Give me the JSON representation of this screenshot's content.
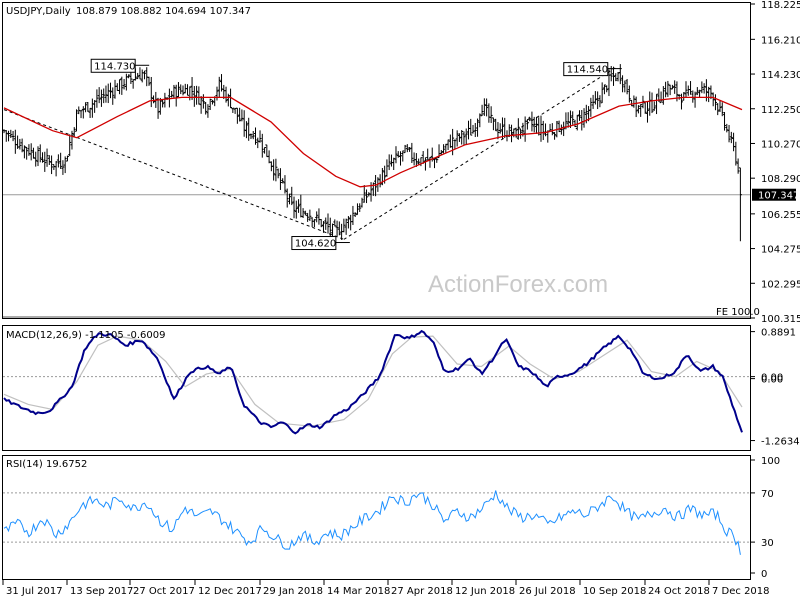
{
  "chart_data": [
    {
      "type": "ohlc",
      "title": "USDJPY,Daily",
      "ohlc_header": "108.879 108.882 104.694 107.347",
      "ylim": [
        100.315,
        118.225
      ],
      "y_ticks": [
        "118.225",
        "116.210",
        "114.230",
        "112.250",
        "110.270",
        "108.290",
        "106.255",
        "104.275",
        "102.295",
        "100.315"
      ],
      "last_price": "107.347",
      "x_ticks": [
        "31 Jul 2017",
        "13 Sep 2017",
        "27 Oct 2017",
        "12 Dec 2017",
        "29 Jan 2018",
        "14 Mar 2018",
        "27 Apr 2018",
        "12 Jun 2018",
        "26 Jul 2018",
        "10 Sep 2018",
        "24 Oct 2018",
        "7 Dec 2018"
      ],
      "annotations": [
        {
          "text": "114.730",
          "value": 114.73,
          "date": "25 Oct 2017"
        },
        {
          "text": "104.620",
          "value": 104.62,
          "date": "26 Mar 2018"
        },
        {
          "text": "114.540",
          "value": 114.54,
          "date": "4 Oct 2018"
        }
      ],
      "fe_label": "FE 100.0",
      "price_path": [
        {
          "day": 0,
          "close": 111.0
        },
        {
          "day": 10,
          "close": 110.2
        },
        {
          "day": 20,
          "close": 109.6
        },
        {
          "day": 30,
          "close": 109.1
        },
        {
          "day": 38,
          "close": 109.3
        },
        {
          "day": 45,
          "close": 112.0
        },
        {
          "day": 55,
          "close": 112.6
        },
        {
          "day": 65,
          "close": 113.2
        },
        {
          "day": 75,
          "close": 113.8
        },
        {
          "day": 86,
          "close": 114.3
        },
        {
          "day": 95,
          "close": 112.2
        },
        {
          "day": 105,
          "close": 113.2
        },
        {
          "day": 115,
          "close": 113.4
        },
        {
          "day": 125,
          "close": 112.4
        },
        {
          "day": 133,
          "close": 113.6
        },
        {
          "day": 140,
          "close": 112.6
        },
        {
          "day": 148,
          "close": 111.2
        },
        {
          "day": 158,
          "close": 110.5
        },
        {
          "day": 168,
          "close": 108.6
        },
        {
          "day": 178,
          "close": 106.6
        },
        {
          "day": 188,
          "close": 106.3
        },
        {
          "day": 198,
          "close": 105.6
        },
        {
          "day": 205,
          "close": 105.2
        },
        {
          "day": 212,
          "close": 105.8
        },
        {
          "day": 220,
          "close": 106.8
        },
        {
          "day": 230,
          "close": 108.0
        },
        {
          "day": 240,
          "close": 109.2
        },
        {
          "day": 248,
          "close": 109.8
        },
        {
          "day": 255,
          "close": 109.4
        },
        {
          "day": 265,
          "close": 109.3
        },
        {
          "day": 275,
          "close": 110.3
        },
        {
          "day": 285,
          "close": 110.8
        },
        {
          "day": 290,
          "close": 111.0
        },
        {
          "day": 295,
          "close": 112.5
        },
        {
          "day": 303,
          "close": 111.2
        },
        {
          "day": 315,
          "close": 110.8
        },
        {
          "day": 325,
          "close": 111.4
        },
        {
          "day": 335,
          "close": 110.9
        },
        {
          "day": 345,
          "close": 111.3
        },
        {
          "day": 355,
          "close": 111.6
        },
        {
          "day": 365,
          "close": 112.5
        },
        {
          "day": 375,
          "close": 114.0
        },
        {
          "day": 381,
          "close": 114.2
        },
        {
          "day": 390,
          "close": 112.3
        },
        {
          "day": 400,
          "close": 112.4
        },
        {
          "day": 410,
          "close": 113.5
        },
        {
          "day": 420,
          "close": 112.9
        },
        {
          "day": 430,
          "close": 113.4
        },
        {
          "day": 438,
          "close": 113.1
        },
        {
          "day": 445,
          "close": 111.4
        },
        {
          "day": 452,
          "close": 109.6
        },
        {
          "day": 456,
          "close": 107.3
        }
      ],
      "moving_average": [
        {
          "day": 0,
          "value": 112.3
        },
        {
          "day": 30,
          "value": 111.0
        },
        {
          "day": 45,
          "value": 110.6
        },
        {
          "day": 70,
          "value": 111.8
        },
        {
          "day": 90,
          "value": 112.7
        },
        {
          "day": 110,
          "value": 112.9
        },
        {
          "day": 140,
          "value": 112.9
        },
        {
          "day": 165,
          "value": 111.5
        },
        {
          "day": 185,
          "value": 109.7
        },
        {
          "day": 205,
          "value": 108.4
        },
        {
          "day": 220,
          "value": 107.8
        },
        {
          "day": 230,
          "value": 107.9
        },
        {
          "day": 245,
          "value": 108.6
        },
        {
          "day": 265,
          "value": 109.4
        },
        {
          "day": 285,
          "value": 110.2
        },
        {
          "day": 310,
          "value": 110.7
        },
        {
          "day": 335,
          "value": 110.9
        },
        {
          "day": 355,
          "value": 111.4
        },
        {
          "day": 380,
          "value": 112.4
        },
        {
          "day": 400,
          "value": 112.7
        },
        {
          "day": 420,
          "value": 112.9
        },
        {
          "day": 438,
          "value": 112.9
        },
        {
          "day": 456,
          "value": 112.2
        }
      ],
      "trendlines": [
        {
          "from": {
            "day": 0,
            "value": 112.2
          },
          "to": {
            "day": 210,
            "value": 104.8
          }
        },
        {
          "from": {
            "day": 210,
            "value": 104.8
          },
          "to": {
            "day": 378,
            "value": 114.6
          }
        }
      ]
    },
    {
      "type": "line",
      "title": "MACD(12,26,9) -1.1105 -0.6009",
      "y_ticks": [
        "0.8891",
        "0.00",
        "0.00",
        "-1.2634"
      ],
      "ylim": [
        -1.45,
        1.0
      ],
      "series": [
        {
          "role": "macd",
          "values": [
            {
              "day": 0,
              "value": -0.45
            },
            {
              "day": 10,
              "value": -0.6
            },
            {
              "day": 20,
              "value": -0.72
            },
            {
              "day": 28,
              "value": -0.68
            },
            {
              "day": 35,
              "value": -0.45
            },
            {
              "day": 42,
              "value": -0.2
            },
            {
              "day": 50,
              "value": 0.55
            },
            {
              "day": 58,
              "value": 0.85
            },
            {
              "day": 66,
              "value": 0.82
            },
            {
              "day": 75,
              "value": 0.62
            },
            {
              "day": 85,
              "value": 0.73
            },
            {
              "day": 95,
              "value": 0.35
            },
            {
              "day": 105,
              "value": -0.45
            },
            {
              "day": 115,
              "value": 0.1
            },
            {
              "day": 125,
              "value": 0.2
            },
            {
              "day": 133,
              "value": 0.05
            },
            {
              "day": 140,
              "value": 0.2
            },
            {
              "day": 148,
              "value": -0.55
            },
            {
              "day": 158,
              "value": -0.9
            },
            {
              "day": 165,
              "value": -1.0
            },
            {
              "day": 172,
              "value": -0.9
            },
            {
              "day": 180,
              "value": -1.1
            },
            {
              "day": 188,
              "value": -0.95
            },
            {
              "day": 196,
              "value": -1.0
            },
            {
              "day": 205,
              "value": -0.75
            },
            {
              "day": 212,
              "value": -0.65
            },
            {
              "day": 222,
              "value": -0.35
            },
            {
              "day": 232,
              "value": 0.0
            },
            {
              "day": 242,
              "value": 0.85
            },
            {
              "day": 250,
              "value": 0.75
            },
            {
              "day": 258,
              "value": 0.9
            },
            {
              "day": 265,
              "value": 0.7
            },
            {
              "day": 272,
              "value": 0.1
            },
            {
              "day": 280,
              "value": 0.15
            },
            {
              "day": 288,
              "value": 0.35
            },
            {
              "day": 295,
              "value": 0.05
            },
            {
              "day": 302,
              "value": 0.35
            },
            {
              "day": 310,
              "value": 0.75
            },
            {
              "day": 318,
              "value": 0.2
            },
            {
              "day": 326,
              "value": 0.1
            },
            {
              "day": 335,
              "value": -0.2
            },
            {
              "day": 342,
              "value": 0.0
            },
            {
              "day": 350,
              "value": 0.05
            },
            {
              "day": 360,
              "value": 0.25
            },
            {
              "day": 370,
              "value": 0.55
            },
            {
              "day": 380,
              "value": 0.8
            },
            {
              "day": 388,
              "value": 0.5
            },
            {
              "day": 395,
              "value": 0.05
            },
            {
              "day": 405,
              "value": -0.05
            },
            {
              "day": 415,
              "value": 0.1
            },
            {
              "day": 422,
              "value": 0.45
            },
            {
              "day": 430,
              "value": 0.1
            },
            {
              "day": 438,
              "value": 0.2
            },
            {
              "day": 444,
              "value": 0.0
            },
            {
              "day": 450,
              "value": -0.55
            },
            {
              "day": 456,
              "value": -1.1
            }
          ]
        },
        {
          "role": "signal",
          "values": [
            {
              "day": 0,
              "value": -0.35
            },
            {
              "day": 15,
              "value": -0.55
            },
            {
              "day": 30,
              "value": -0.65
            },
            {
              "day": 45,
              "value": -0.1
            },
            {
              "day": 58,
              "value": 0.62
            },
            {
              "day": 70,
              "value": 0.8
            },
            {
              "day": 85,
              "value": 0.72
            },
            {
              "day": 100,
              "value": 0.3
            },
            {
              "day": 112,
              "value": -0.2
            },
            {
              "day": 125,
              "value": 0.05
            },
            {
              "day": 140,
              "value": 0.15
            },
            {
              "day": 155,
              "value": -0.55
            },
            {
              "day": 170,
              "value": -0.92
            },
            {
              "day": 190,
              "value": -0.98
            },
            {
              "day": 210,
              "value": -0.85
            },
            {
              "day": 225,
              "value": -0.45
            },
            {
              "day": 240,
              "value": 0.45
            },
            {
              "day": 252,
              "value": 0.78
            },
            {
              "day": 265,
              "value": 0.8
            },
            {
              "day": 280,
              "value": 0.25
            },
            {
              "day": 295,
              "value": 0.2
            },
            {
              "day": 312,
              "value": 0.6
            },
            {
              "day": 325,
              "value": 0.25
            },
            {
              "day": 340,
              "value": -0.05
            },
            {
              "day": 355,
              "value": 0.1
            },
            {
              "day": 372,
              "value": 0.45
            },
            {
              "day": 385,
              "value": 0.72
            },
            {
              "day": 400,
              "value": 0.1
            },
            {
              "day": 415,
              "value": 0.0
            },
            {
              "day": 428,
              "value": 0.3
            },
            {
              "day": 442,
              "value": 0.1
            },
            {
              "day": 456,
              "value": -0.6
            }
          ]
        }
      ]
    },
    {
      "type": "line",
      "title": "RSI(14) 19.6752",
      "y_ticks": [
        "100",
        "70",
        "30",
        "0"
      ],
      "ylim": [
        0,
        100
      ],
      "series": [
        {
          "role": "rsi",
          "values": [
            {
              "day": 0,
              "value": 38
            },
            {
              "day": 8,
              "value": 45
            },
            {
              "day": 16,
              "value": 38
            },
            {
              "day": 24,
              "value": 50
            },
            {
              "day": 32,
              "value": 36
            },
            {
              "day": 40,
              "value": 45
            },
            {
              "day": 48,
              "value": 60
            },
            {
              "day": 56,
              "value": 64
            },
            {
              "day": 64,
              "value": 59
            },
            {
              "day": 72,
              "value": 66
            },
            {
              "day": 80,
              "value": 57
            },
            {
              "day": 88,
              "value": 63
            },
            {
              "day": 96,
              "value": 48
            },
            {
              "day": 104,
              "value": 40
            },
            {
              "day": 112,
              "value": 58
            },
            {
              "day": 120,
              "value": 50
            },
            {
              "day": 128,
              "value": 55
            },
            {
              "day": 136,
              "value": 47
            },
            {
              "day": 144,
              "value": 38
            },
            {
              "day": 152,
              "value": 30
            },
            {
              "day": 160,
              "value": 42
            },
            {
              "day": 168,
              "value": 33
            },
            {
              "day": 176,
              "value": 27
            },
            {
              "day": 184,
              "value": 36
            },
            {
              "day": 192,
              "value": 30
            },
            {
              "day": 200,
              "value": 38
            },
            {
              "day": 208,
              "value": 35
            },
            {
              "day": 216,
              "value": 43
            },
            {
              "day": 224,
              "value": 50
            },
            {
              "day": 232,
              "value": 56
            },
            {
              "day": 240,
              "value": 68
            },
            {
              "day": 248,
              "value": 62
            },
            {
              "day": 256,
              "value": 70
            },
            {
              "day": 264,
              "value": 62
            },
            {
              "day": 272,
              "value": 47
            },
            {
              "day": 280,
              "value": 55
            },
            {
              "day": 288,
              "value": 50
            },
            {
              "day": 296,
              "value": 58
            },
            {
              "day": 304,
              "value": 70
            },
            {
              "day": 312,
              "value": 56
            },
            {
              "day": 320,
              "value": 50
            },
            {
              "day": 328,
              "value": 52
            },
            {
              "day": 336,
              "value": 44
            },
            {
              "day": 344,
              "value": 50
            },
            {
              "day": 352,
              "value": 55
            },
            {
              "day": 360,
              "value": 52
            },
            {
              "day": 368,
              "value": 60
            },
            {
              "day": 376,
              "value": 68
            },
            {
              "day": 384,
              "value": 55
            },
            {
              "day": 392,
              "value": 48
            },
            {
              "day": 400,
              "value": 53
            },
            {
              "day": 408,
              "value": 58
            },
            {
              "day": 416,
              "value": 50
            },
            {
              "day": 424,
              "value": 57
            },
            {
              "day": 432,
              "value": 52
            },
            {
              "day": 440,
              "value": 53
            },
            {
              "day": 446,
              "value": 40
            },
            {
              "day": 452,
              "value": 33
            },
            {
              "day": 456,
              "value": 20
            }
          ]
        }
      ]
    }
  ],
  "watermark": "ActionForex.com",
  "colors": {
    "price_bars": "#000000",
    "moving_average": "#d00000",
    "macd": "#00008b",
    "signal": "#c0c0c0",
    "rsi": "#1e90ff",
    "grid": "#9a9a9a",
    "axis": "#000000"
  }
}
